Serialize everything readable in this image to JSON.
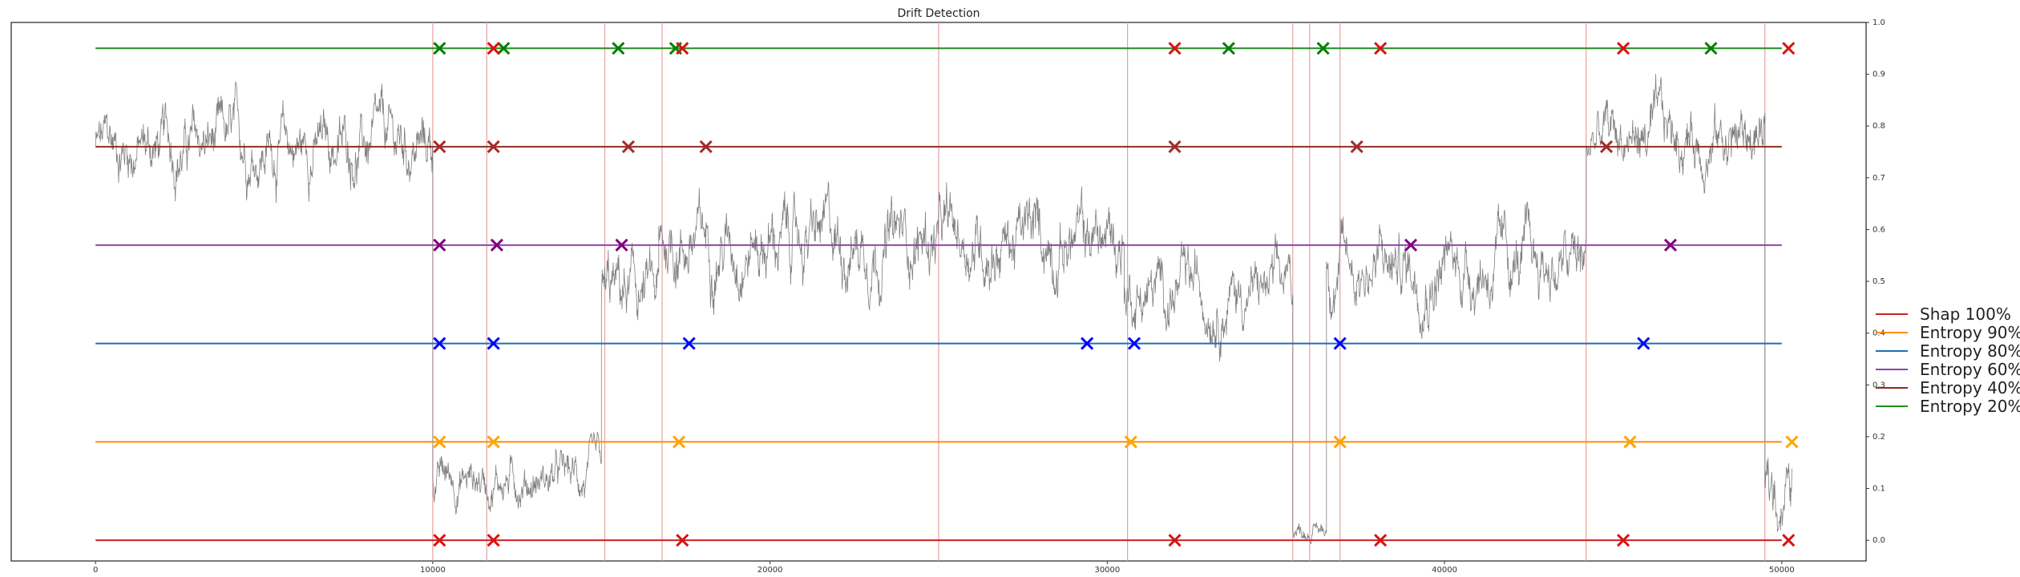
{
  "chart_data": {
    "type": "line",
    "title": "Drift Detection",
    "xlabel": "",
    "ylabel": "",
    "xlim": [
      -2500,
      52500
    ],
    "ylim": [
      -0.04,
      1.0
    ],
    "x_ticks": [
      0,
      10000,
      20000,
      30000,
      40000,
      50000
    ],
    "x_tick_labels": [
      "0",
      "10000",
      "20000",
      "30000",
      "40000",
      "50000"
    ],
    "y_ticks": [
      0.0,
      0.1,
      0.2,
      0.3,
      0.4,
      0.5,
      0.6,
      0.7,
      0.8,
      0.9,
      1.0
    ],
    "y_tick_labels": [
      "0.0",
      "0.1",
      "0.2",
      "0.3",
      "0.4",
      "0.5",
      "0.6",
      "0.7",
      "0.8",
      "0.9",
      "1.0"
    ],
    "y_axis_side": "right",
    "grid": false,
    "legend_position": "right",
    "signal": {
      "color": "#808080",
      "segments": [
        {
          "x_start": 0,
          "x_end": 10000,
          "mean": 0.76,
          "noise": 0.035
        },
        {
          "x_start": 10000,
          "x_end": 15000,
          "mean": 0.12,
          "noise": 0.025
        },
        {
          "x_start": 15000,
          "x_end": 16700,
          "mean": 0.47,
          "noise": 0.04
        },
        {
          "x_start": 16700,
          "x_end": 30500,
          "mean": 0.58,
          "noise": 0.04
        },
        {
          "x_start": 30500,
          "x_end": 35500,
          "mean": 0.48,
          "noise": 0.035
        },
        {
          "x_start": 35500,
          "x_end": 36500,
          "mean": 0.02,
          "noise": 0.01
        },
        {
          "x_start": 36500,
          "x_end": 44200,
          "mean": 0.53,
          "noise": 0.04
        },
        {
          "x_start": 44200,
          "x_end": 49500,
          "mean": 0.78,
          "noise": 0.035
        },
        {
          "x_start": 49500,
          "x_end": 50300,
          "mean": 0.1,
          "noise": 0.04
        }
      ]
    },
    "drift_lines": {
      "color": "#e8a0a0",
      "x": [
        10000,
        11600,
        15100,
        16800,
        25000,
        30600,
        35500,
        36000,
        36900,
        44200,
        49500
      ]
    },
    "series": [
      {
        "name": "Shap 100%",
        "color": "#cc2222",
        "marker_color": "#dd1111",
        "level": 0.0,
        "detections": [
          10200,
          11800,
          17400,
          32000,
          38100,
          45300,
          50200
        ]
      },
      {
        "name": "Entropy 90%",
        "color": "#ff8c00",
        "marker_color": "#ffa500",
        "level": 0.19,
        "detections": [
          10200,
          11800,
          17300,
          30700,
          36900,
          45500,
          50300
        ]
      },
      {
        "name": "Entropy 80%",
        "color": "#1f6fb4",
        "marker_color": "#0000ff",
        "level": 0.38,
        "detections": [
          10200,
          11800,
          17600,
          29400,
          30800,
          36900,
          45900
        ]
      },
      {
        "name": "Entropy 60%",
        "color": "#8e44ad",
        "marker_color": "#800080",
        "level": 0.57,
        "detections": [
          10200,
          11900,
          15600,
          39000,
          46700
        ]
      },
      {
        "name": "Entropy 40%",
        "color": "#8b2d1e",
        "marker_color": "#a52a2a",
        "level": 0.76,
        "detections": [
          10200,
          11800,
          15800,
          18100,
          32000,
          37400,
          44800
        ]
      },
      {
        "name": "Entropy 20%",
        "color": "#228b22",
        "marker_color": "#008000",
        "level": 0.95,
        "detections": [
          10200,
          12100,
          15500,
          17200,
          33600,
          36400,
          47900
        ]
      },
      {
        "name": "",
        "color": "#dd1111",
        "marker_color": "#dd1111",
        "level": 0.95,
        "legend": false,
        "detections": [
          11800,
          17400,
          32000,
          38100,
          45300,
          50200
        ]
      }
    ]
  }
}
